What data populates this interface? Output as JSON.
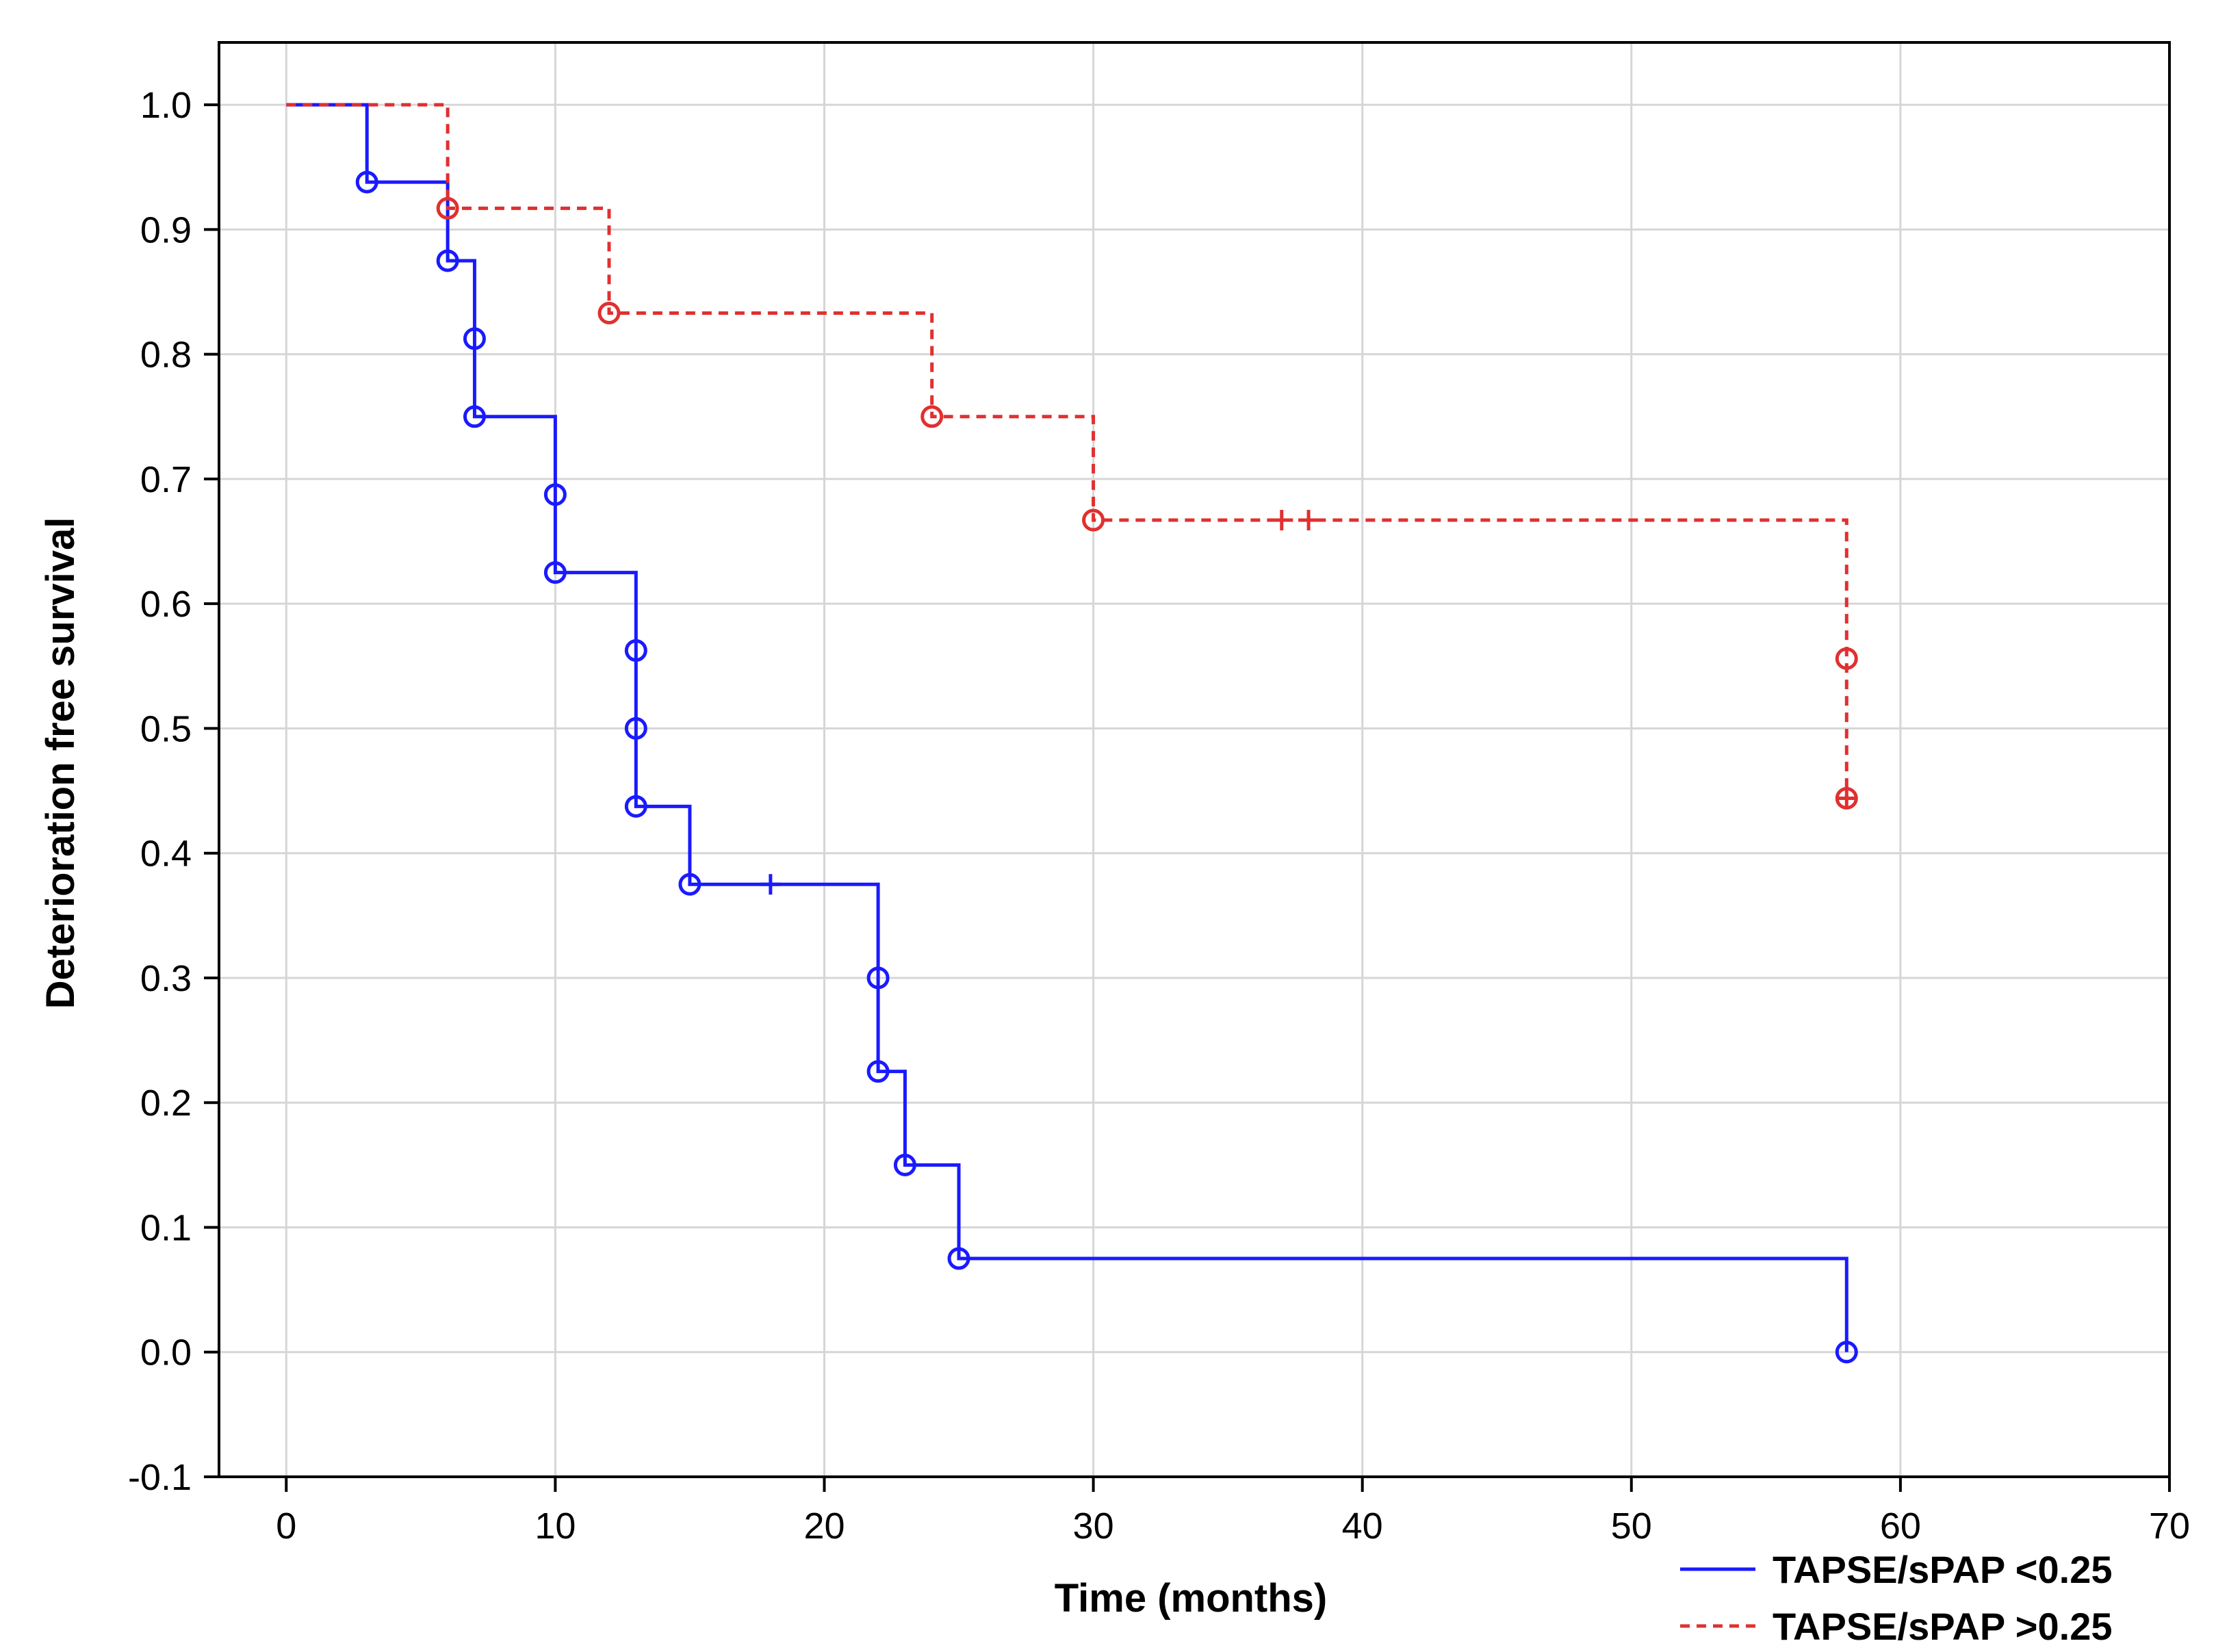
{
  "chart_data": {
    "type": "line",
    "subtype": "kaplan-meier step",
    "title": "",
    "xlabel": "Time (months)",
    "ylabel": "Deterioration free survival",
    "xlim": [
      -2.5,
      70
    ],
    "ylim": [
      -0.1,
      1.05
    ],
    "x_ticks": [
      0,
      10,
      20,
      30,
      40,
      50,
      60,
      70
    ],
    "y_ticks": [
      -0.1,
      0.0,
      0.1,
      0.2,
      0.3,
      0.4,
      0.5,
      0.6,
      0.7,
      0.8,
      0.9,
      1.0
    ],
    "x_tick_labels": [
      "0",
      "10",
      "20",
      "30",
      "40",
      "50",
      "60",
      "70"
    ],
    "y_tick_labels": [
      "-0.1",
      "0.0",
      "0.1",
      "0.2",
      "0.3",
      "0.4",
      "0.5",
      "0.6",
      "0.7",
      "0.8",
      "0.9",
      "1.0"
    ],
    "grid": true,
    "legend_position": "bottom-right",
    "series": [
      {
        "name": "TAPSE/sPAP <0.25",
        "color": "#1a1aff",
        "line_style": "solid",
        "steps": [
          [
            0,
            1.0
          ],
          [
            3,
            0.938
          ],
          [
            6,
            0.875
          ],
          [
            7,
            0.75
          ],
          [
            10,
            0.625
          ],
          [
            13,
            0.4375
          ],
          [
            15,
            0.375
          ],
          [
            22,
            0.225
          ],
          [
            23,
            0.15
          ],
          [
            25,
            0.075
          ],
          [
            58,
            0.0
          ]
        ],
        "events": [
          [
            3,
            0.938
          ],
          [
            6,
            0.875
          ],
          [
            7,
            0.8125
          ],
          [
            7,
            0.75
          ],
          [
            10,
            0.6875
          ],
          [
            10,
            0.625
          ],
          [
            13,
            0.5625
          ],
          [
            13,
            0.5
          ],
          [
            13,
            0.4375
          ],
          [
            15,
            0.375
          ],
          [
            22,
            0.3
          ],
          [
            22,
            0.225
          ],
          [
            23,
            0.15
          ],
          [
            25,
            0.075
          ],
          [
            58,
            0.0
          ]
        ],
        "censored": [
          [
            18,
            0.375
          ]
        ]
      },
      {
        "name": "TAPSE/sPAP >0.25",
        "color": "#e03030",
        "line_style": "dashed",
        "steps": [
          [
            0,
            1.0
          ],
          [
            6,
            0.917
          ],
          [
            12,
            0.833
          ],
          [
            24,
            0.75
          ],
          [
            30,
            0.667
          ],
          [
            58,
            0.444
          ]
        ],
        "events": [
          [
            6,
            0.917
          ],
          [
            12,
            0.833
          ],
          [
            24,
            0.75
          ],
          [
            30,
            0.667
          ],
          [
            58,
            0.556
          ],
          [
            58,
            0.444
          ]
        ],
        "censored": [
          [
            37,
            0.667
          ],
          [
            38,
            0.667
          ],
          [
            58,
            0.444
          ]
        ]
      }
    ]
  }
}
